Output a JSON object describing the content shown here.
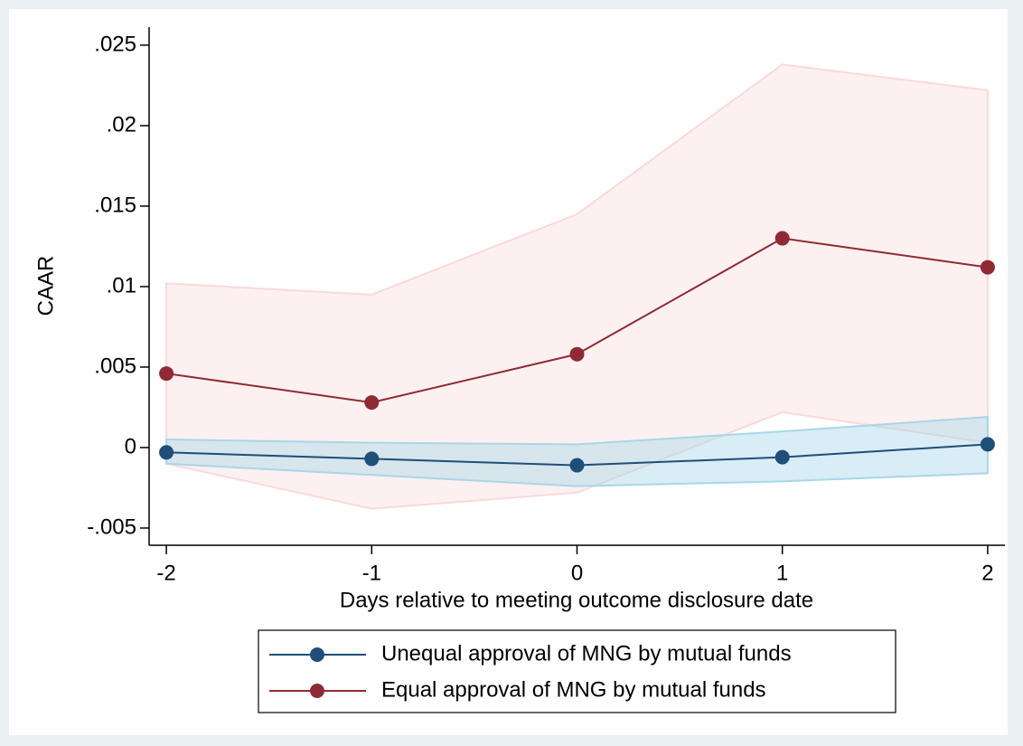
{
  "chart_data": {
    "type": "line",
    "x_label": "Days relative to meeting outcome disclosure date",
    "y_label": "CAAR",
    "x": [
      -2,
      -1,
      0,
      1,
      2
    ],
    "xlim": [
      -2.084,
      2.084
    ],
    "xticks": [
      -2,
      -1,
      0,
      1,
      2
    ],
    "ylim": [
      -0.00607,
      0.02612
    ],
    "yticks": [
      {
        "value": -0.005,
        "label": "-.005"
      },
      0,
      {
        "value": 0.005,
        "label": ".005"
      },
      {
        "value": 0.01,
        "label": ".01"
      },
      {
        "value": 0.015,
        "label": ".015"
      },
      {
        "value": 0.02,
        "label": ".02"
      },
      {
        "value": 0.025,
        "label": ".025"
      }
    ],
    "grid": false,
    "legend": "bottom",
    "series": [
      {
        "name": "Unequal approval of MNG by mutual funds",
        "color": "#1f4e79",
        "band_color": "#a9d6e8",
        "values": [
          -0.0003,
          -0.0007,
          -0.0011,
          -0.0006,
          0.0002
        ],
        "upper": [
          0.0005,
          0.0003,
          0.0002,
          0.001,
          0.0019
        ],
        "lower": [
          -0.001,
          -0.0017,
          -0.0024,
          -0.0021,
          -0.0016
        ]
      },
      {
        "name": "Equal approval of MNG by mutual funds",
        "color": "#8f2a34",
        "band_color": "#fbd9d9",
        "values": [
          0.0046,
          0.0028,
          0.0058,
          0.013,
          0.0112
        ],
        "upper": [
          0.0102,
          0.0095,
          0.0145,
          0.0238,
          0.0222
        ],
        "lower": [
          -0.001,
          -0.0038,
          -0.0028,
          0.0022,
          0.0003
        ]
      }
    ]
  }
}
